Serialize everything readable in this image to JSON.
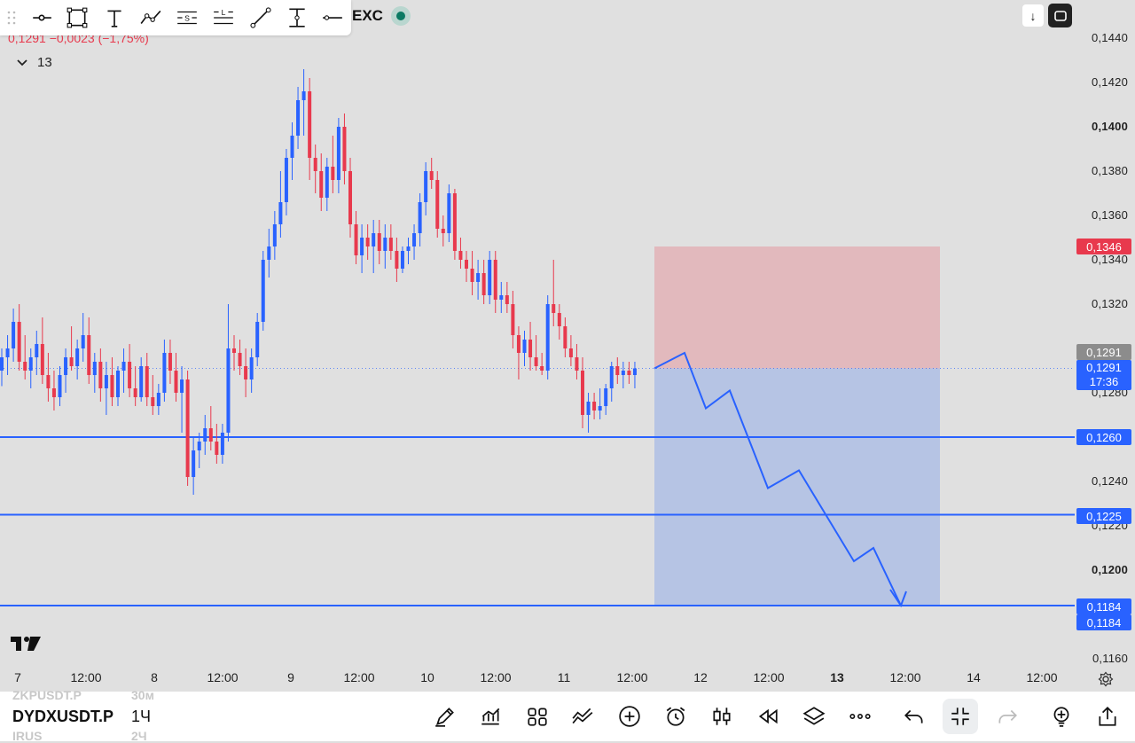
{
  "toolbar": {
    "tools": [
      {
        "icon": "horizontal-ray-icon"
      },
      {
        "icon": "rectangle-icon"
      },
      {
        "icon": "text-icon"
      },
      {
        "icon": "path-icon"
      },
      {
        "icon": "short-position-icon",
        "glyph": "S"
      },
      {
        "icon": "long-position-icon",
        "glyph": "L"
      },
      {
        "icon": "trend-line-icon"
      },
      {
        "icon": "price-range-icon"
      },
      {
        "icon": "horizontal-line-icon"
      }
    ],
    "exchange": "EXC",
    "status_color": "#0b7a63"
  },
  "legend": {
    "price_change": "0,1291 −0,0023 (−1,75%)",
    "indicator_count": "13"
  },
  "header_buttons": {
    "download_glyph": "↓"
  },
  "price_axis": {
    "ticks": [
      {
        "value": "0,1440",
        "bold": false
      },
      {
        "value": "0,1420",
        "bold": false
      },
      {
        "value": "0,1400",
        "bold": true
      },
      {
        "value": "0,1380",
        "bold": false
      },
      {
        "value": "0,1360",
        "bold": false
      },
      {
        "value": "0,1340",
        "bold": false
      },
      {
        "value": "0,1320",
        "bold": false
      },
      {
        "value": "0,1280",
        "bold": false
      },
      {
        "value": "0,1240",
        "bold": false
      },
      {
        "value": "0,1220",
        "bold": false
      },
      {
        "value": "0,1200",
        "bold": true
      },
      {
        "value": "0,1160",
        "bold": false
      }
    ],
    "labels": {
      "stop_loss": "0,1346",
      "prev_close": "0,1291",
      "current_price": "0,1291",
      "countdown": "17:36",
      "level1": "0,1260",
      "level2": "0,1225",
      "target_a": "0,1184",
      "target_b": "0,1184"
    }
  },
  "time_axis": {
    "labels": [
      {
        "text": "7",
        "bold": false
      },
      {
        "text": "12:00",
        "bold": false
      },
      {
        "text": "8",
        "bold": false
      },
      {
        "text": "12:00",
        "bold": false
      },
      {
        "text": "9",
        "bold": false
      },
      {
        "text": "12:00",
        "bold": false
      },
      {
        "text": "10",
        "bold": false
      },
      {
        "text": "12:00",
        "bold": false
      },
      {
        "text": "11",
        "bold": false
      },
      {
        "text": "12:00",
        "bold": false
      },
      {
        "text": "12",
        "bold": false
      },
      {
        "text": "12:00",
        "bold": false
      },
      {
        "text": "13",
        "bold": true
      },
      {
        "text": "12:00",
        "bold": false
      },
      {
        "text": "14",
        "bold": false
      },
      {
        "text": "12:00",
        "bold": false
      }
    ]
  },
  "bottom_bar": {
    "symbol": "DYDXUSDT.P",
    "interval": "1Ч",
    "ghost_symbol_above": "ZKPUSDT.P",
    "ghost_interval_above": "30м",
    "ghost_symbol_below": "IRUS",
    "ghost_interval_below": "2Ч",
    "buttons": [
      {
        "icon": "drawing-pen-icon"
      },
      {
        "icon": "indicators-icon"
      },
      {
        "icon": "layout-grid-icon"
      },
      {
        "icon": "compare-icon"
      },
      {
        "icon": "add-circle-icon"
      },
      {
        "icon": "alarm-clock-icon"
      },
      {
        "icon": "candles-icon"
      },
      {
        "icon": "replay-icon"
      },
      {
        "icon": "layers-icon"
      },
      {
        "icon": "more-icon"
      },
      {
        "icon": "undo-icon"
      },
      {
        "icon": "collapse-icon"
      },
      {
        "icon": "redo-icon"
      },
      {
        "icon": "bulb-icon"
      },
      {
        "icon": "share-icon"
      }
    ]
  },
  "colors": {
    "bull": "#2962ff",
    "bear": "#e8394d",
    "line": "#2962ff",
    "stop_zone": "#e2b9bd",
    "target_zone": "#b6c4e4"
  },
  "chart_data": {
    "type": "candlestick",
    "symbol": "DYDXUSDT.P",
    "interval": "1Ч",
    "ylim": [
      0.115,
      0.1455
    ],
    "horizontal_levels": [
      0.126,
      0.1225,
      0.1184
    ],
    "position": {
      "entry": 0.1291,
      "stop": 0.1346,
      "target": 0.1184
    },
    "projection_path": [
      0.1291,
      0.1298,
      0.1273,
      0.1281,
      0.1237,
      0.1245,
      0.1204,
      0.121,
      0.1184
    ],
    "candles": [
      [
        0.129,
        0.13,
        0.1283,
        0.1296
      ],
      [
        0.1296,
        0.1306,
        0.1288,
        0.13
      ],
      [
        0.13,
        0.1318,
        0.1294,
        0.1312
      ],
      [
        0.1312,
        0.132,
        0.129,
        0.1294
      ],
      [
        0.1294,
        0.1306,
        0.1286,
        0.129
      ],
      [
        0.129,
        0.13,
        0.1282,
        0.1296
      ],
      [
        0.1296,
        0.1308,
        0.1288,
        0.1302
      ],
      [
        0.1302,
        0.1314,
        0.1284,
        0.1288
      ],
      [
        0.1288,
        0.1298,
        0.1276,
        0.1282
      ],
      [
        0.1282,
        0.129,
        0.1272,
        0.1278
      ],
      [
        0.1278,
        0.1292,
        0.1274,
        0.1288
      ],
      [
        0.1288,
        0.13,
        0.128,
        0.1296
      ],
      [
        0.1296,
        0.131,
        0.129,
        0.1292
      ],
      [
        0.1292,
        0.1304,
        0.1286,
        0.13
      ],
      [
        0.13,
        0.1316,
        0.1294,
        0.1306
      ],
      [
        0.1306,
        0.1314,
        0.1284,
        0.1288
      ],
      [
        0.1288,
        0.1298,
        0.128,
        0.1294
      ],
      [
        0.1294,
        0.13,
        0.1276,
        0.1282
      ],
      [
        0.1282,
        0.1294,
        0.127,
        0.1288
      ],
      [
        0.1288,
        0.1296,
        0.1274,
        0.1278
      ],
      [
        0.1278,
        0.1292,
        0.1274,
        0.129
      ],
      [
        0.129,
        0.13,
        0.128,
        0.1294
      ],
      [
        0.1294,
        0.1302,
        0.1278,
        0.1282
      ],
      [
        0.1282,
        0.1292,
        0.1274,
        0.1278
      ],
      [
        0.1278,
        0.1296,
        0.1276,
        0.1292
      ],
      [
        0.1292,
        0.1298,
        0.1274,
        0.1278
      ],
      [
        0.1278,
        0.1288,
        0.127,
        0.1274
      ],
      [
        0.1274,
        0.1284,
        0.127,
        0.128
      ],
      [
        0.128,
        0.1304,
        0.1276,
        0.1298
      ],
      [
        0.1298,
        0.1304,
        0.1284,
        0.129
      ],
      [
        0.129,
        0.1298,
        0.1276,
        0.128
      ],
      [
        0.128,
        0.1292,
        0.1262,
        0.1286
      ],
      [
        0.1286,
        0.129,
        0.1238,
        0.1242
      ],
      [
        0.1242,
        0.126,
        0.1234,
        0.1254
      ],
      [
        0.1254,
        0.1262,
        0.1246,
        0.1258
      ],
      [
        0.1258,
        0.127,
        0.1252,
        0.1264
      ],
      [
        0.1264,
        0.1274,
        0.1254,
        0.1258
      ],
      [
        0.1258,
        0.1266,
        0.1248,
        0.1252
      ],
      [
        0.1252,
        0.1266,
        0.1248,
        0.1262
      ],
      [
        0.1262,
        0.132,
        0.1258,
        0.13
      ],
      [
        0.13,
        0.1306,
        0.129,
        0.1298
      ],
      [
        0.1298,
        0.1304,
        0.1288,
        0.1292
      ],
      [
        0.1292,
        0.13,
        0.1278,
        0.1286
      ],
      [
        0.1286,
        0.13,
        0.128,
        0.1296
      ],
      [
        0.1296,
        0.1316,
        0.1292,
        0.1312
      ],
      [
        0.1312,
        0.1344,
        0.1308,
        0.134
      ],
      [
        0.134,
        0.1354,
        0.1332,
        0.1346
      ],
      [
        0.1346,
        0.1362,
        0.134,
        0.1356
      ],
      [
        0.1356,
        0.138,
        0.135,
        0.1366
      ],
      [
        0.1366,
        0.139,
        0.136,
        0.1386
      ],
      [
        0.1386,
        0.1402,
        0.1376,
        0.1396
      ],
      [
        0.1396,
        0.1418,
        0.139,
        0.1412
      ],
      [
        0.1412,
        0.1426,
        0.1396,
        0.1416
      ],
      [
        0.1416,
        0.1422,
        0.1376,
        0.1386
      ],
      [
        0.1386,
        0.1392,
        0.137,
        0.138
      ],
      [
        0.138,
        0.1388,
        0.1362,
        0.1368
      ],
      [
        0.1368,
        0.1386,
        0.1362,
        0.1382
      ],
      [
        0.1382,
        0.1396,
        0.137,
        0.1376
      ],
      [
        0.1376,
        0.1404,
        0.137,
        0.14
      ],
      [
        0.14,
        0.1406,
        0.1374,
        0.138
      ],
      [
        0.138,
        0.1386,
        0.135,
        0.1356
      ],
      [
        0.1356,
        0.1362,
        0.1338,
        0.1342
      ],
      [
        0.1342,
        0.1356,
        0.1334,
        0.135
      ],
      [
        0.135,
        0.1356,
        0.134,
        0.1346
      ],
      [
        0.1346,
        0.1358,
        0.1334,
        0.1352
      ],
      [
        0.1352,
        0.1358,
        0.1338,
        0.1344
      ],
      [
        0.1344,
        0.1356,
        0.1336,
        0.135
      ],
      [
        0.135,
        0.1356,
        0.134,
        0.1344
      ],
      [
        0.1344,
        0.135,
        0.133,
        0.1336
      ],
      [
        0.1336,
        0.1346,
        0.1334,
        0.1344
      ],
      [
        0.1344,
        0.135,
        0.1338,
        0.1346
      ],
      [
        0.1346,
        0.1356,
        0.134,
        0.1352
      ],
      [
        0.1352,
        0.137,
        0.1346,
        0.1366
      ],
      [
        0.1366,
        0.1384,
        0.136,
        0.138
      ],
      [
        0.138,
        0.1386,
        0.1372,
        0.1376
      ],
      [
        0.1376,
        0.138,
        0.135,
        0.1354
      ],
      [
        0.1354,
        0.136,
        0.1346,
        0.1352
      ],
      [
        0.1352,
        0.1374,
        0.1348,
        0.137
      ],
      [
        0.137,
        0.1372,
        0.134,
        0.1344
      ],
      [
        0.1344,
        0.135,
        0.1336,
        0.134
      ],
      [
        0.134,
        0.1344,
        0.133,
        0.1336
      ],
      [
        0.1336,
        0.1344,
        0.1324,
        0.133
      ],
      [
        0.133,
        0.134,
        0.1322,
        0.1334
      ],
      [
        0.1334,
        0.134,
        0.132,
        0.1324
      ],
      [
        0.1324,
        0.1344,
        0.132,
        0.134
      ],
      [
        0.134,
        0.1344,
        0.1316,
        0.1322
      ],
      [
        0.1322,
        0.133,
        0.1316,
        0.1324
      ],
      [
        0.1324,
        0.133,
        0.1316,
        0.132
      ],
      [
        0.132,
        0.1326,
        0.13,
        0.1306
      ],
      [
        0.1306,
        0.131,
        0.1286,
        0.1298
      ],
      [
        0.1298,
        0.1308,
        0.1292,
        0.1304
      ],
      [
        0.1304,
        0.1312,
        0.129,
        0.1296
      ],
      [
        0.1296,
        0.1306,
        0.129,
        0.1292
      ],
      [
        0.1292,
        0.1298,
        0.1288,
        0.129
      ],
      [
        0.129,
        0.1324,
        0.1286,
        0.132
      ],
      [
        0.132,
        0.134,
        0.131,
        0.1316
      ],
      [
        0.1316,
        0.132,
        0.1304,
        0.131
      ],
      [
        0.131,
        0.1314,
        0.1296,
        0.13
      ],
      [
        0.13,
        0.1306,
        0.1292,
        0.1296
      ],
      [
        0.1296,
        0.1302,
        0.1286,
        0.129
      ],
      [
        0.129,
        0.1296,
        0.1264,
        0.127
      ],
      [
        0.127,
        0.128,
        0.1262,
        0.1276
      ],
      [
        0.1276,
        0.128,
        0.1268,
        0.1272
      ],
      [
        0.1272,
        0.1282,
        0.1268,
        0.1274
      ],
      [
        0.1274,
        0.1284,
        0.127,
        0.1282
      ],
      [
        0.1282,
        0.1294,
        0.1276,
        0.1292
      ],
      [
        0.1292,
        0.1296,
        0.1284,
        0.1288
      ],
      [
        0.1288,
        0.1294,
        0.1282,
        0.129
      ],
      [
        0.129,
        0.1294,
        0.1284,
        0.1288
      ],
      [
        0.1288,
        0.1294,
        0.1282,
        0.1291
      ]
    ]
  }
}
